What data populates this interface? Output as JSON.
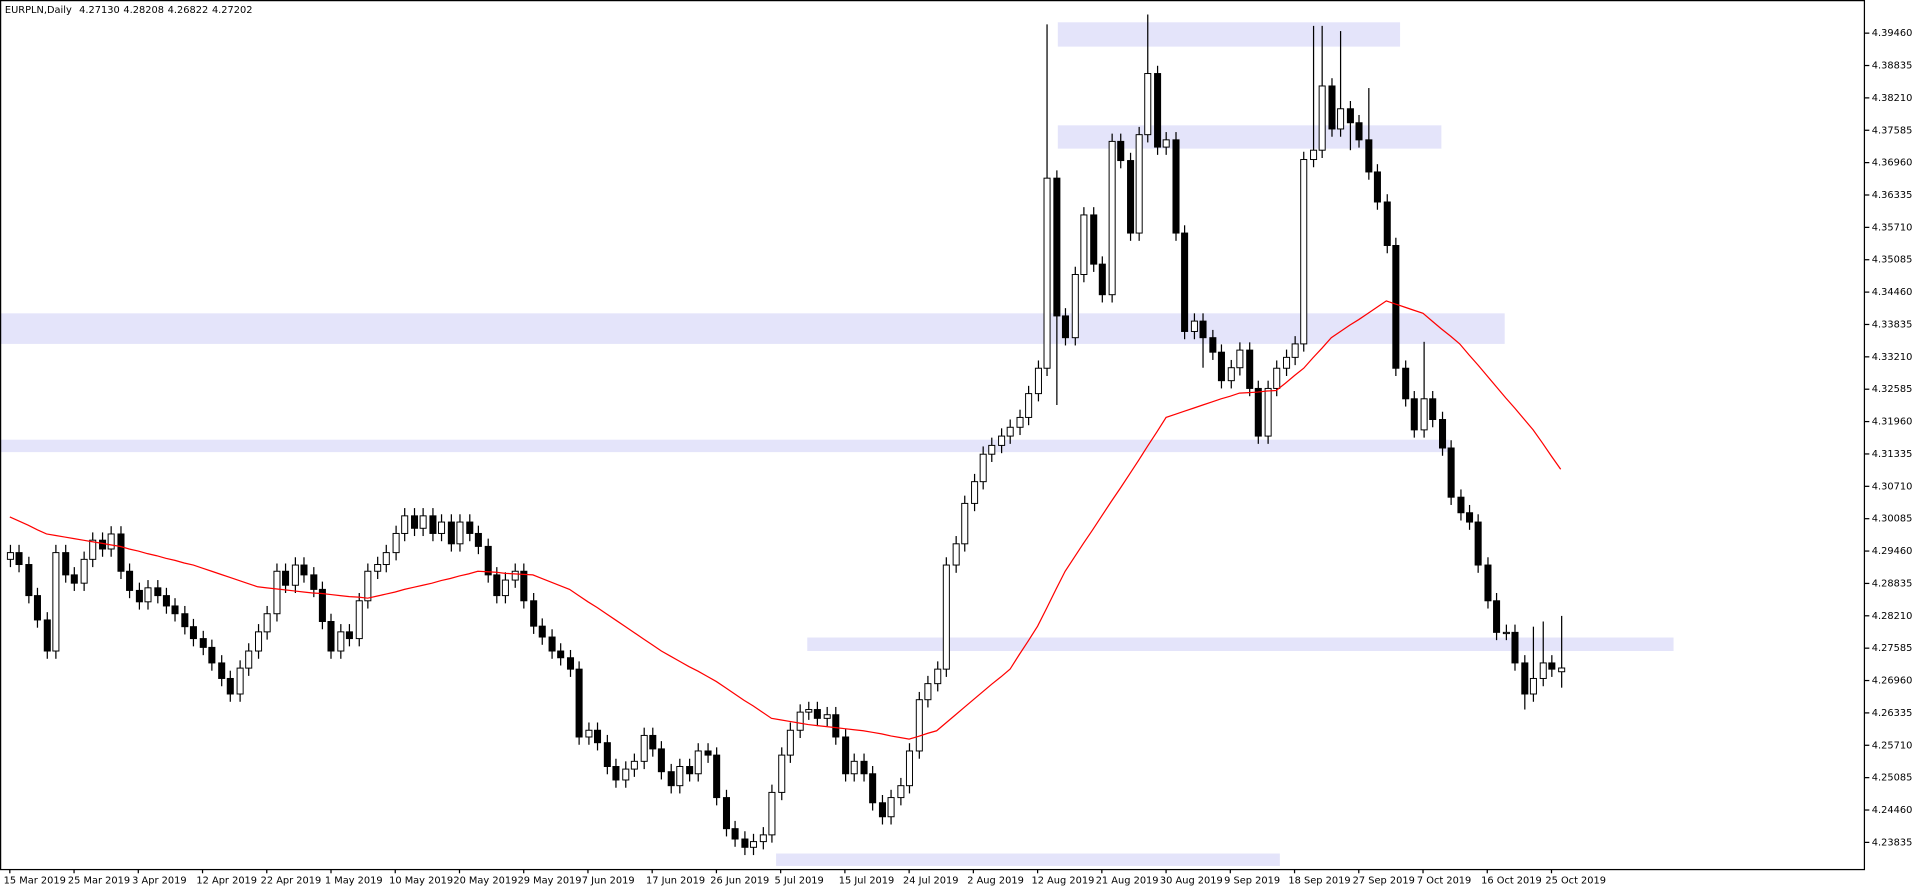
{
  "chart_data": {
    "type": "candlestick",
    "title": "EURPLN,Daily",
    "header_values": [
      "4.27130",
      "4.28208",
      "4.26822",
      "4.27202"
    ],
    "categories": [
      "15 Mar 2019",
      null,
      null,
      null,
      null,
      null,
      null,
      "25 Mar 2019",
      null,
      null,
      null,
      null,
      null,
      null,
      "3 Apr 2019",
      null,
      null,
      null,
      null,
      null,
      null,
      "12 Apr 2019",
      null,
      null,
      null,
      null,
      null,
      null,
      "22 Apr 2019",
      null,
      null,
      null,
      null,
      null,
      null,
      "1 May 2019",
      null,
      null,
      null,
      null,
      null,
      null,
      "10 May 2019",
      null,
      null,
      null,
      null,
      null,
      null,
      "20 May 2019",
      null,
      null,
      null,
      null,
      null,
      null,
      "29 May 2019",
      null,
      null,
      null,
      null,
      null,
      null,
      "7 Jun 2019",
      null,
      null,
      null,
      null,
      null,
      null,
      "17 Jun 2019",
      null,
      null,
      null,
      null,
      null,
      null,
      "26 Jun 2019",
      null,
      null,
      null,
      null,
      null,
      null,
      "5 Jul 2019",
      null,
      null,
      null,
      null,
      null,
      null,
      "15 Jul 2019",
      null,
      null,
      null,
      null,
      null,
      null,
      "24 Jul 2019",
      null,
      null,
      null,
      null,
      null,
      null,
      "2 Aug 2019",
      null,
      null,
      null,
      null,
      null,
      null,
      "12 Aug 2019",
      null,
      null,
      null,
      null,
      null,
      null,
      "21 Aug 2019",
      null,
      null,
      null,
      null,
      null,
      null,
      "30 Aug 2019",
      null,
      null,
      null,
      null,
      null,
      null,
      "9 Sep 2019",
      null,
      null,
      null,
      null,
      null,
      null,
      "18 Sep 2019",
      null,
      null,
      null,
      null,
      null,
      null,
      "27 Sep 2019",
      null,
      null,
      null,
      null,
      null,
      null,
      "7 Oct 2019",
      null,
      null,
      null,
      null,
      null,
      null,
      "16 Oct 2019",
      null,
      null,
      null,
      null,
      null,
      null,
      "25 Oct 2019",
      null
    ],
    "open": [
      4.293,
      4.2943,
      4.292,
      4.286,
      4.2813,
      4.2753,
      4.2943,
      4.29,
      4.2884,
      4.293,
      4.2967,
      4.295,
      4.2979,
      4.2907,
      4.287,
      4.2848,
      4.2875,
      4.286,
      4.284,
      4.2825,
      4.28,
      4.2777,
      4.276,
      4.273,
      4.27,
      4.267,
      4.272,
      4.2753,
      4.279,
      4.2825,
      4.2907,
      4.288,
      4.2919,
      4.29,
      4.2872,
      4.281,
      4.2753,
      4.279,
      4.2777,
      4.285,
      4.2907,
      4.292,
      4.2943,
      4.298,
      4.3014,
      4.299,
      4.3014,
      4.298,
      4.3002,
      4.296,
      4.3002,
      4.298,
      4.2955,
      4.29,
      4.286,
      4.289,
      4.2907,
      4.285,
      4.2801,
      4.278,
      4.2753,
      4.274,
      4.2718,
      4.2587,
      4.26,
      4.2576,
      4.253,
      4.2504,
      4.2525,
      4.254,
      4.259,
      4.2564,
      4.252,
      4.2493,
      4.253,
      4.2516,
      4.256,
      4.2552,
      4.247,
      4.241,
      4.239,
      4.2374,
      4.2385,
      4.2398,
      4.248,
      4.2552,
      4.26,
      4.2635,
      4.264,
      4.2623,
      4.263,
      4.2587,
      4.2516,
      4.254,
      4.2516,
      4.246,
      4.2433,
      4.247,
      4.2493,
      4.256,
      4.2659,
      4.269,
      4.2718,
      4.2919,
      4.296,
      4.3038,
      4.308,
      4.3133,
      4.315,
      4.3168,
      4.3185,
      4.3204,
      4.325,
      4.3299,
      4.3666,
      4.34,
      4.3358,
      4.348,
      4.3595,
      4.35,
      4.3441,
      4.3737,
      4.37,
      4.356,
      4.375,
      4.3868,
      4.3726,
      4.374,
      4.356,
      4.337,
      4.339,
      4.3358,
      4.333,
      4.3275,
      4.33,
      4.3334,
      4.326,
      4.3168,
      4.326,
      4.3299,
      4.332,
      4.3346,
      4.3702,
      4.372,
      4.3844,
      4.3761,
      4.38,
      4.3773,
      4.374,
      4.3678,
      4.362,
      4.3536,
      4.3299,
      4.324,
      4.318,
      4.324,
      4.32,
      4.3145,
      4.305,
      4.302,
      4.3002,
      4.2919,
      4.285,
      4.2789,
      4.2789,
      4.273,
      4.267,
      4.27,
      4.273,
      4.2713
    ],
    "high": [
      4.2958,
      4.2958,
      4.2935,
      4.2875,
      4.2828,
      4.2958,
      4.2958,
      4.2915,
      4.2945,
      4.2982,
      4.2982,
      4.2994,
      4.2994,
      4.2922,
      4.2885,
      4.289,
      4.289,
      4.2875,
      4.2855,
      4.284,
      4.2815,
      4.2792,
      4.2775,
      4.2745,
      4.2715,
      4.2735,
      4.2768,
      4.2805,
      4.284,
      4.2922,
      4.2922,
      4.2934,
      4.2934,
      4.2915,
      4.2887,
      4.2825,
      4.2805,
      4.2805,
      4.2865,
      4.2922,
      4.2935,
      4.2958,
      4.2995,
      4.3029,
      4.3029,
      4.3029,
      4.3029,
      4.3017,
      4.3017,
      4.3017,
      4.3017,
      4.2995,
      4.297,
      4.2915,
      4.2905,
      4.2922,
      4.2922,
      4.2865,
      4.2816,
      4.2795,
      4.2768,
      4.2755,
      4.2733,
      4.2615,
      4.2615,
      4.2591,
      4.2545,
      4.254,
      4.2555,
      4.2605,
      4.2605,
      4.2579,
      4.2535,
      4.2545,
      4.2545,
      4.2575,
      4.2575,
      4.2567,
      4.2485,
      4.2425,
      4.2405,
      4.24,
      4.2413,
      4.2495,
      4.2567,
      4.2615,
      4.265,
      4.2655,
      4.2655,
      4.2645,
      4.2645,
      4.2602,
      4.2555,
      4.2555,
      4.2531,
      4.2475,
      4.2485,
      4.2508,
      4.2575,
      4.2674,
      4.2705,
      4.2733,
      4.2934,
      4.2975,
      4.3053,
      4.3095,
      4.3148,
      4.3165,
      4.3183,
      4.32,
      4.3219,
      4.3265,
      4.3314,
      4.3963,
      4.3681,
      4.3415,
      4.3495,
      4.361,
      4.361,
      4.3515,
      4.3752,
      4.3752,
      4.3715,
      4.3765,
      4.3982,
      4.3883,
      4.3755,
      4.3755,
      4.3575,
      4.3405,
      4.3405,
      4.3373,
      4.3345,
      4.3315,
      4.3349,
      4.3349,
      4.3275,
      4.3275,
      4.3314,
      4.3335,
      4.3361,
      4.3717,
      4.396,
      4.396,
      4.3859,
      4.395,
      4.3815,
      4.3788,
      4.384,
      4.3693,
      4.3635,
      4.3551,
      4.3314,
      4.3255,
      4.335,
      4.3255,
      4.3215,
      4.316,
      4.3065,
      4.3035,
      4.3017,
      4.2934,
      4.2865,
      4.2804,
      4.2804,
      4.2745,
      4.28,
      4.281,
      4.2745,
      4.28208
    ],
    "low": [
      4.2915,
      4.2905,
      4.2845,
      4.2798,
      4.2738,
      4.2738,
      4.2885,
      4.2869,
      4.2869,
      4.2915,
      4.2935,
      4.2935,
      4.2892,
      4.2855,
      4.2833,
      4.2833,
      4.2845,
      4.2825,
      4.281,
      4.2785,
      4.2762,
      4.2745,
      4.2715,
      4.2685,
      4.2655,
      4.2655,
      4.2705,
      4.2738,
      4.2775,
      4.281,
      4.2865,
      4.2865,
      4.2885,
      4.2857,
      4.2795,
      4.2738,
      4.2738,
      4.2762,
      4.2762,
      4.2835,
      4.2892,
      4.2905,
      4.2928,
      4.2965,
      4.2975,
      4.2975,
      4.2965,
      4.2965,
      4.2945,
      4.2945,
      4.2965,
      4.294,
      4.2885,
      4.2845,
      4.2845,
      4.2875,
      4.2835,
      4.2786,
      4.2765,
      4.2738,
      4.2725,
      4.2703,
      4.2572,
      4.2572,
      4.2561,
      4.2515,
      4.2489,
      4.2489,
      4.251,
      4.2525,
      4.2549,
      4.2505,
      4.2478,
      4.2478,
      4.2501,
      4.2501,
      4.2537,
      4.2455,
      4.2395,
      4.2375,
      4.2359,
      4.2359,
      4.237,
      4.2383,
      4.2465,
      4.2537,
      4.2585,
      4.262,
      4.2608,
      4.2608,
      4.2572,
      4.2501,
      4.2501,
      4.2501,
      4.2445,
      4.2418,
      4.2418,
      4.2455,
      4.2478,
      4.2545,
      4.2644,
      4.2675,
      4.2703,
      4.2904,
      4.2945,
      4.3023,
      4.3065,
      4.3118,
      4.3135,
      4.3153,
      4.317,
      4.3189,
      4.3235,
      4.3284,
      4.3228,
      4.3343,
      4.3343,
      4.3465,
      4.3485,
      4.3426,
      4.3426,
      4.3685,
      4.3545,
      4.3545,
      4.3735,
      4.3711,
      4.3711,
      4.3545,
      4.3355,
      4.3355,
      4.33,
      4.3315,
      4.326,
      4.326,
      4.3285,
      4.3245,
      4.3153,
      4.3153,
      4.3245,
      4.3284,
      4.3305,
      4.3331,
      4.3687,
      4.3705,
      4.3746,
      4.3746,
      4.372,
      4.3725,
      4.3663,
      4.3605,
      4.3521,
      4.3284,
      4.3225,
      4.3165,
      4.3165,
      4.3185,
      4.313,
      4.3035,
      4.3005,
      4.2987,
      4.2904,
      4.2835,
      4.2774,
      4.2774,
      4.2715,
      4.264,
      4.2655,
      4.2685,
      4.2703,
      4.26822
    ],
    "close": [
      4.2943,
      4.292,
      4.286,
      4.2813,
      4.2753,
      4.2943,
      4.29,
      4.2884,
      4.293,
      4.2967,
      4.295,
      4.2979,
      4.2907,
      4.287,
      4.2848,
      4.2875,
      4.286,
      4.284,
      4.2825,
      4.28,
      4.2777,
      4.276,
      4.273,
      4.27,
      4.267,
      4.272,
      4.2753,
      4.279,
      4.2825,
      4.2907,
      4.288,
      4.2919,
      4.29,
      4.2872,
      4.281,
      4.2753,
      4.279,
      4.2777,
      4.285,
      4.2907,
      4.292,
      4.2943,
      4.298,
      4.3014,
      4.299,
      4.3014,
      4.298,
      4.3002,
      4.296,
      4.3002,
      4.298,
      4.2955,
      4.29,
      4.286,
      4.289,
      4.2907,
      4.285,
      4.2801,
      4.278,
      4.2753,
      4.274,
      4.2718,
      4.2587,
      4.26,
      4.2576,
      4.253,
      4.2504,
      4.2525,
      4.254,
      4.259,
      4.2564,
      4.252,
      4.2493,
      4.253,
      4.2516,
      4.256,
      4.2552,
      4.247,
      4.241,
      4.239,
      4.2374,
      4.2385,
      4.2398,
      4.248,
      4.2552,
      4.26,
      4.2635,
      4.264,
      4.2623,
      4.263,
      4.2587,
      4.2516,
      4.254,
      4.2516,
      4.246,
      4.2433,
      4.247,
      4.2493,
      4.256,
      4.2659,
      4.269,
      4.2718,
      4.2919,
      4.296,
      4.3038,
      4.308,
      4.3133,
      4.315,
      4.3168,
      4.3185,
      4.3204,
      4.325,
      4.3299,
      4.3666,
      4.34,
      4.3358,
      4.348,
      4.3595,
      4.35,
      4.3441,
      4.3737,
      4.37,
      4.356,
      4.375,
      4.3868,
      4.3726,
      4.374,
      4.356,
      4.337,
      4.339,
      4.3358,
      4.333,
      4.3275,
      4.33,
      4.3334,
      4.326,
      4.3168,
      4.326,
      4.3299,
      4.332,
      4.3346,
      4.3702,
      4.372,
      4.3844,
      4.3761,
      4.38,
      4.3773,
      4.374,
      4.3678,
      4.362,
      4.3536,
      4.3299,
      4.324,
      4.318,
      4.324,
      4.32,
      4.3145,
      4.305,
      4.302,
      4.3002,
      4.2919,
      4.285,
      4.2789,
      4.2789,
      4.273,
      4.267,
      4.27,
      4.273,
      4.2718,
      4.27202
    ],
    "ma": {
      "color": "#ff0000",
      "values": [
        4.3012,
        4.3004,
        4.2996,
        4.2987,
        4.2979,
        4.2976,
        4.2973,
        4.297,
        4.2967,
        4.2964,
        4.2961,
        4.2958,
        4.2955,
        4.295,
        4.2946,
        4.2941,
        4.2937,
        4.2932,
        4.2928,
        4.2923,
        4.2919,
        4.2913,
        4.2907,
        4.2901,
        4.2895,
        4.2889,
        4.2883,
        4.2877,
        4.2875,
        4.2873,
        4.2871,
        4.2869,
        4.2867,
        4.2865,
        4.2864,
        4.2862,
        4.286,
        4.2858,
        4.2857,
        4.2855,
        4.2859,
        4.2863,
        4.2867,
        4.2872,
        4.2876,
        4.288,
        4.2884,
        4.2889,
        4.2893,
        4.2898,
        4.2902,
        4.2907,
        4.2906,
        4.2905,
        4.2903,
        4.2902,
        4.2901,
        4.29,
        4.2893,
        4.2886,
        4.2879,
        4.2872,
        4.286,
        4.2848,
        4.2837,
        4.2825,
        4.2813,
        4.2801,
        4.2789,
        4.2777,
        4.2765,
        4.2753,
        4.2743,
        4.2733,
        4.2723,
        4.2714,
        4.2704,
        4.2694,
        4.2682,
        4.267,
        4.2658,
        4.2647,
        4.2635,
        4.2623,
        4.262,
        4.2617,
        4.2614,
        4.2611,
        4.2609,
        4.2607,
        4.2605,
        4.2603,
        4.2601,
        4.2599,
        4.2596,
        4.2593,
        4.2589,
        4.2586,
        4.2583,
        4.2588,
        4.2594,
        4.2599,
        4.2614,
        4.2629,
        4.2644,
        4.2659,
        4.2674,
        4.2689,
        4.2703,
        4.2718,
        4.2746,
        4.2773,
        4.2801,
        4.2836,
        4.2872,
        4.2907,
        4.2934,
        4.2961,
        4.2987,
        4.3014,
        4.3041,
        4.3067,
        4.3094,
        4.3121,
        4.3149,
        4.3176,
        4.3204,
        4.321,
        4.3216,
        4.3222,
        4.3228,
        4.3234,
        4.324,
        4.3245,
        4.3251,
        4.3252,
        4.3253,
        4.3255,
        4.3256,
        4.327,
        4.3285,
        4.3299,
        4.3319,
        4.3338,
        4.3358,
        4.337,
        4.3382,
        4.3393,
        4.3405,
        4.3417,
        4.3429,
        4.3423,
        4.3417,
        4.3411,
        4.3405,
        4.339,
        4.3375,
        4.3361,
        4.3346,
        4.3325,
        4.3305,
        4.3284,
        4.3263,
        4.3242,
        4.3222,
        4.3201,
        4.318,
        4.3155,
        4.3129,
        4.3104
      ]
    },
    "zones": {
      "color": "#e4e4fa",
      "items": [
        {
          "start": 114.2,
          "end": 151.5,
          "low": 4.392,
          "high": 4.3967
        },
        {
          "start": 114.2,
          "end": 156.0,
          "low": 4.3723,
          "high": 4.3768
        },
        {
          "start": -1.07,
          "end": 162.9,
          "low": 4.3346,
          "high": 4.3405
        },
        {
          "start": -1.07,
          "end": 156.9,
          "low": 4.3137,
          "high": 4.3161
        },
        {
          "start": 86.9,
          "end": 181.3,
          "low": 4.2753,
          "high": 4.2779
        },
        {
          "start": 83.5,
          "end": 138.4,
          "low": 4.2338,
          "high": 4.2362
        }
      ]
    },
    "bull_color": "#ffffff",
    "bear_color": "#000000",
    "xlim": [
      -1.07,
      202.1
    ],
    "ylim": [
      4.2331,
      4.401
    ],
    "yticks": [
      {
        "value": 4.23835,
        "label": "4.23835"
      },
      {
        "value": 4.2446,
        "label": "4.24460"
      },
      {
        "value": 4.25085,
        "label": "4.25085"
      },
      {
        "value": 4.2571,
        "label": "4.25710"
      },
      {
        "value": 4.26335,
        "label": "4.26335"
      },
      {
        "value": 4.2696,
        "label": "4.26960"
      },
      {
        "value": 4.27585,
        "label": "4.27585"
      },
      {
        "value": 4.2821,
        "label": "4.28210"
      },
      {
        "value": 4.28835,
        "label": "4.28835"
      },
      {
        "value": 4.2946,
        "label": "4.29460"
      },
      {
        "value": 4.30085,
        "label": "4.30085"
      },
      {
        "value": 4.3071,
        "label": "4.30710"
      },
      {
        "value": 4.31335,
        "label": "4.31335"
      },
      {
        "value": 4.3196,
        "label": "4.31960"
      },
      {
        "value": 4.32585,
        "label": "4.32585"
      },
      {
        "value": 4.3321,
        "label": "4.33210"
      },
      {
        "value": 4.33835,
        "label": "4.33835"
      },
      {
        "value": 4.3446,
        "label": "4.34460"
      },
      {
        "value": 4.35085,
        "label": "4.35085"
      },
      {
        "value": 4.3571,
        "label": "4.35710"
      },
      {
        "value": 4.36335,
        "label": "4.36335"
      },
      {
        "value": 4.3696,
        "label": "4.36960"
      },
      {
        "value": 4.37585,
        "label": "4.37585"
      },
      {
        "value": 4.3821,
        "label": "4.38210"
      },
      {
        "value": 4.38835,
        "label": "4.38835"
      },
      {
        "value": 4.3946,
        "label": "4.39460"
      }
    ],
    "grid": false
  }
}
